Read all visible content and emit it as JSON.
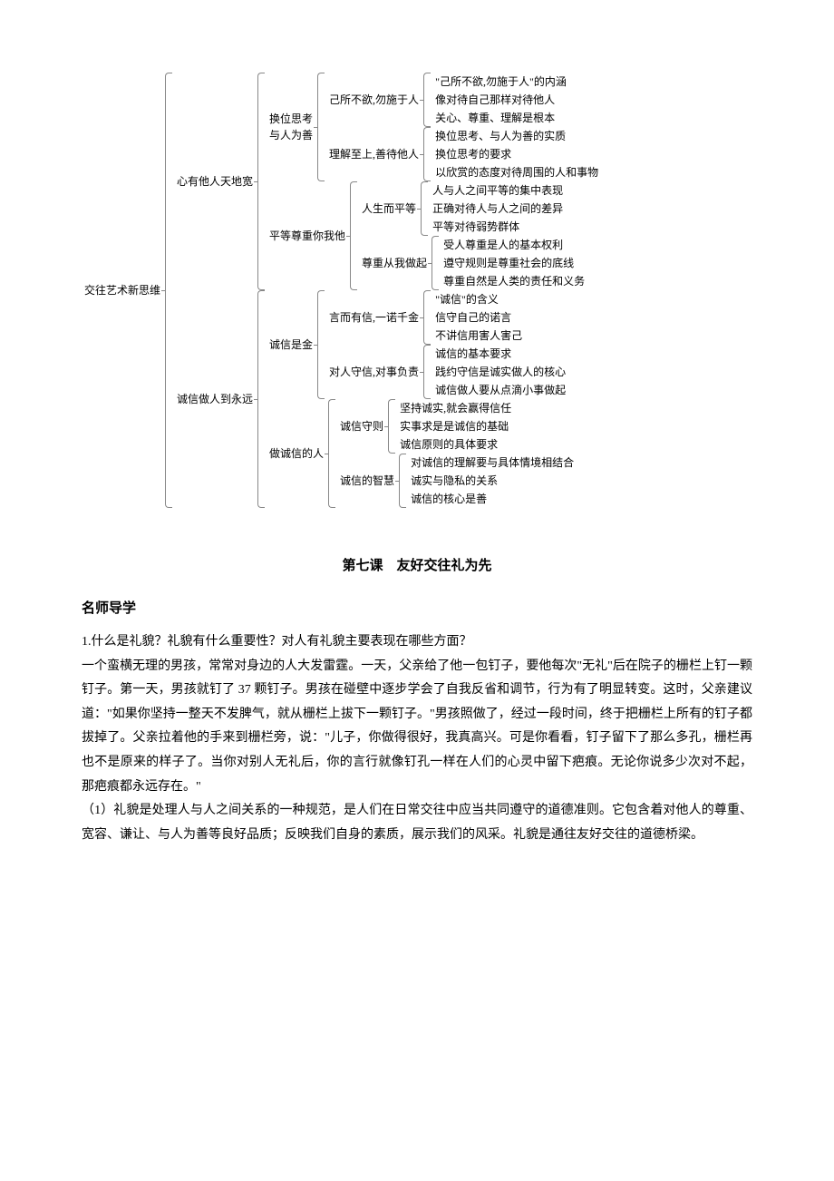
{
  "diagram": {
    "root": "交往艺术新思维",
    "branches": [
      {
        "label": "心有他人天地宽",
        "children": [
          {
            "label": "换位思考\n与人为善",
            "children": [
              {
                "label": "己所不欲,勿施于人",
                "leaves": [
                  "\"己所不欲,勿施于人\"的内涵",
                  "像对待自己那样对待他人",
                  "关心、尊重、理解是根本"
                ]
              },
              {
                "label": "理解至上,善待他人",
                "leaves": [
                  "换位思考、与人为善的实质",
                  "换位思考的要求",
                  "以欣赏的态度对待周围的人和事物"
                ]
              }
            ]
          },
          {
            "label": "平等尊重你我他",
            "children": [
              {
                "label": "人生而平等",
                "leaves": [
                  "人与人之间平等的集中表现",
                  "正确对待人与人之间的差异",
                  "平等对待弱势群体"
                ]
              },
              {
                "label": "尊重从我做起",
                "leaves": [
                  "受人尊重是人的基本权利",
                  "遵守规则是尊重社会的底线",
                  "尊重自然是人类的责任和义务"
                ]
              }
            ]
          }
        ]
      },
      {
        "label": "诚信做人到永远",
        "children": [
          {
            "label": "诚信是金",
            "children": [
              {
                "label": "言而有信,一诺千金",
                "leaves": [
                  "\"诚信\"的含义",
                  "信守自己的诺言",
                  "不讲信用害人害己"
                ]
              },
              {
                "label": "对人守信,对事负责",
                "leaves": [
                  "诚信的基本要求",
                  "践约守信是诚实做人的核心",
                  "诚信做人要从点滴小事做起"
                ]
              }
            ]
          },
          {
            "label": "做诚信的人",
            "children": [
              {
                "label": "诚信守则",
                "leaves": [
                  "坚持诚实,就会赢得信任",
                  "实事求是是诚信的基础",
                  "诚信原则的具体要求"
                ]
              },
              {
                "label": "诚信的智慧",
                "leaves": [
                  "对诚信的理解要与具体情境相结合",
                  "诚实与隐私的关系",
                  "诚信的核心是善"
                ]
              }
            ]
          }
        ]
      }
    ]
  },
  "lesson_title": "第七课　友好交往礼为先",
  "section_heading": "名师导学",
  "q1": "1.什么是礼貌？礼貌有什么重要性？对人有礼貌主要表现在哪些方面？",
  "story": "一个蛮横无理的男孩，常常对身边的人大发雷霆。一天，父亲给了他一包钉子，要他每次\"无礼\"后在院子的栅栏上钉一颗钉子。第一天，男孩就钉了 37 颗钉子。男孩在碰壁中逐步学会了自我反省和调节，行为有了明显转变。这时，父亲建议道：\"如果你坚持一整天不发脾气，就从栅栏上拔下一颗钉子。\"男孩照做了，经过一段时间，终于把栅栏上所有的钉子都拔掉了。父亲拉着他的手来到栅栏旁，说：\"儿子，你做得很好，我真高兴。可是你看看，钉子留下了那么多孔，栅栏再也不是原来的样子了。当你对别人无礼后，你的言行就像钉孔一样在人们的心灵中留下疤痕。无论你说多少次对不起，那疤痕都永远存在。\"",
  "para1": "（1）礼貌是处理人与人之间关系的一种规范，是人们在日常交往中应当共同遵守的道德准则。它包含着对他人的尊重、宽容、谦让、与人为善等良好品质；反映我们自身的素质，展示我们的风采。礼貌是通往友好交往的道德桥梁。"
}
